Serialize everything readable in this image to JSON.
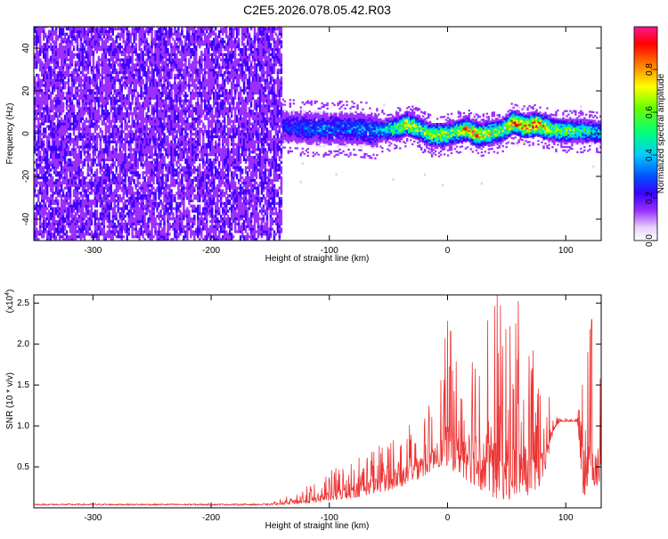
{
  "title": "C2E5.2026.078.05.42.R03",
  "chart_data": [
    {
      "type": "heatmap",
      "name": "spectrogram",
      "xlabel": "Height of straight line (km)",
      "ylabel": "Frequency (Hz)",
      "xlim": [
        -350,
        130
      ],
      "ylim": [
        -50,
        50
      ],
      "xticks": [
        -300,
        -200,
        -100,
        0,
        100
      ],
      "xtick_labels": [
        "-300",
        "-200",
        "-100",
        "0",
        "100"
      ],
      "yticks": [
        -40,
        -20,
        0,
        20,
        40
      ],
      "ytick_labels": [
        "-40",
        "-20",
        "0",
        "20",
        "40"
      ],
      "noise_region": {
        "x_range": [
          -350,
          -140
        ],
        "description": "broadband low-amplitude noise over full frequency range"
      },
      "signal_band": {
        "x_range": [
          -140,
          130
        ],
        "center_hz": 1,
        "halfwidth_hz": 6
      },
      "signal_ridge": {
        "x": [
          -140,
          -110,
          -80,
          -60,
          -45,
          -35,
          -25,
          -15,
          -5,
          5,
          15,
          25,
          35,
          45,
          55,
          65,
          75,
          85,
          95,
          105,
          115,
          130
        ],
        "freq": [
          3,
          2,
          2,
          1,
          2,
          4,
          2,
          -1,
          -1,
          0,
          2,
          -1,
          0,
          1,
          5,
          3,
          4,
          2,
          1,
          1,
          1,
          0
        ],
        "amplitude": [
          0.25,
          0.3,
          0.3,
          0.35,
          0.55,
          0.75,
          0.6,
          0.65,
          0.7,
          0.6,
          0.8,
          0.85,
          0.7,
          0.6,
          0.85,
          0.9,
          0.9,
          0.7,
          0.6,
          0.6,
          0.5,
          0.4
        ]
      },
      "colorbar": {
        "label": "Normalized spectral amplitude",
        "range": [
          0,
          1
        ],
        "ticks": [
          0.0,
          0.2,
          0.4,
          0.6,
          0.8
        ],
        "tick_labels": [
          "0.0",
          "0.2",
          "0.4",
          "0.6",
          "0.8"
        ],
        "colors": [
          "#ffffff",
          "#e6d2fa",
          "#9b30ff",
          "#3c00ff",
          "#0050ff",
          "#00ccff",
          "#00ff7f",
          "#66ff00",
          "#ffff00",
          "#ff8000",
          "#ff0000",
          "#ff1493"
        ]
      }
    },
    {
      "type": "line",
      "name": "snr",
      "xlabel": "Height of straight line (km)",
      "ylabel": "SNR (10 * v/v)",
      "multiplier_label": "(x10",
      "multiplier_exp": "4",
      "multiplier_close": ")",
      "xlim": [
        -350,
        130
      ],
      "ylim": [
        0,
        2.6
      ],
      "xticks": [
        -300,
        -200,
        -100,
        0,
        100
      ],
      "xtick_labels": [
        "-300",
        "-200",
        "-100",
        "0",
        "100"
      ],
      "yticks": [
        0.5,
        1.0,
        1.5,
        2.0,
        2.5
      ],
      "ytick_labels": [
        "0.5",
        "1.0",
        "1.5",
        "2.0",
        "2.5"
      ],
      "color": "#ee3333",
      "envelope": {
        "x": [
          -350,
          -150,
          -120,
          -100,
          -80,
          -60,
          -40,
          -20,
          -10,
          0,
          10,
          20,
          30,
          40,
          50,
          60,
          70,
          80,
          90,
          95,
          100,
          110,
          115,
          120,
          130
        ],
        "base": [
          0.03,
          0.03,
          0.05,
          0.08,
          0.12,
          0.18,
          0.25,
          0.38,
          0.5,
          0.5,
          0.4,
          0.3,
          0.2,
          0.1,
          0.1,
          0.1,
          0.15,
          0.25,
          0.95,
          1.05,
          1.05,
          1.05,
          0.1,
          0.3,
          0.2
        ],
        "peak": [
          0.05,
          0.05,
          0.25,
          0.45,
          0.6,
          0.8,
          1.0,
          1.3,
          1.2,
          2.3,
          1.9,
          2.2,
          2.3,
          2.6,
          2.4,
          2.5,
          2.0,
          1.7,
          1.15,
          1.1,
          1.1,
          1.1,
          1.9,
          2.3,
          1.8
        ]
      },
      "spikes": [
        {
          "x": 0,
          "y": 2.28
        },
        {
          "x": 42,
          "y": 2.6
        },
        {
          "x": 60,
          "y": 2.52
        },
        {
          "x": 122,
          "y": 2.3
        }
      ]
    }
  ]
}
